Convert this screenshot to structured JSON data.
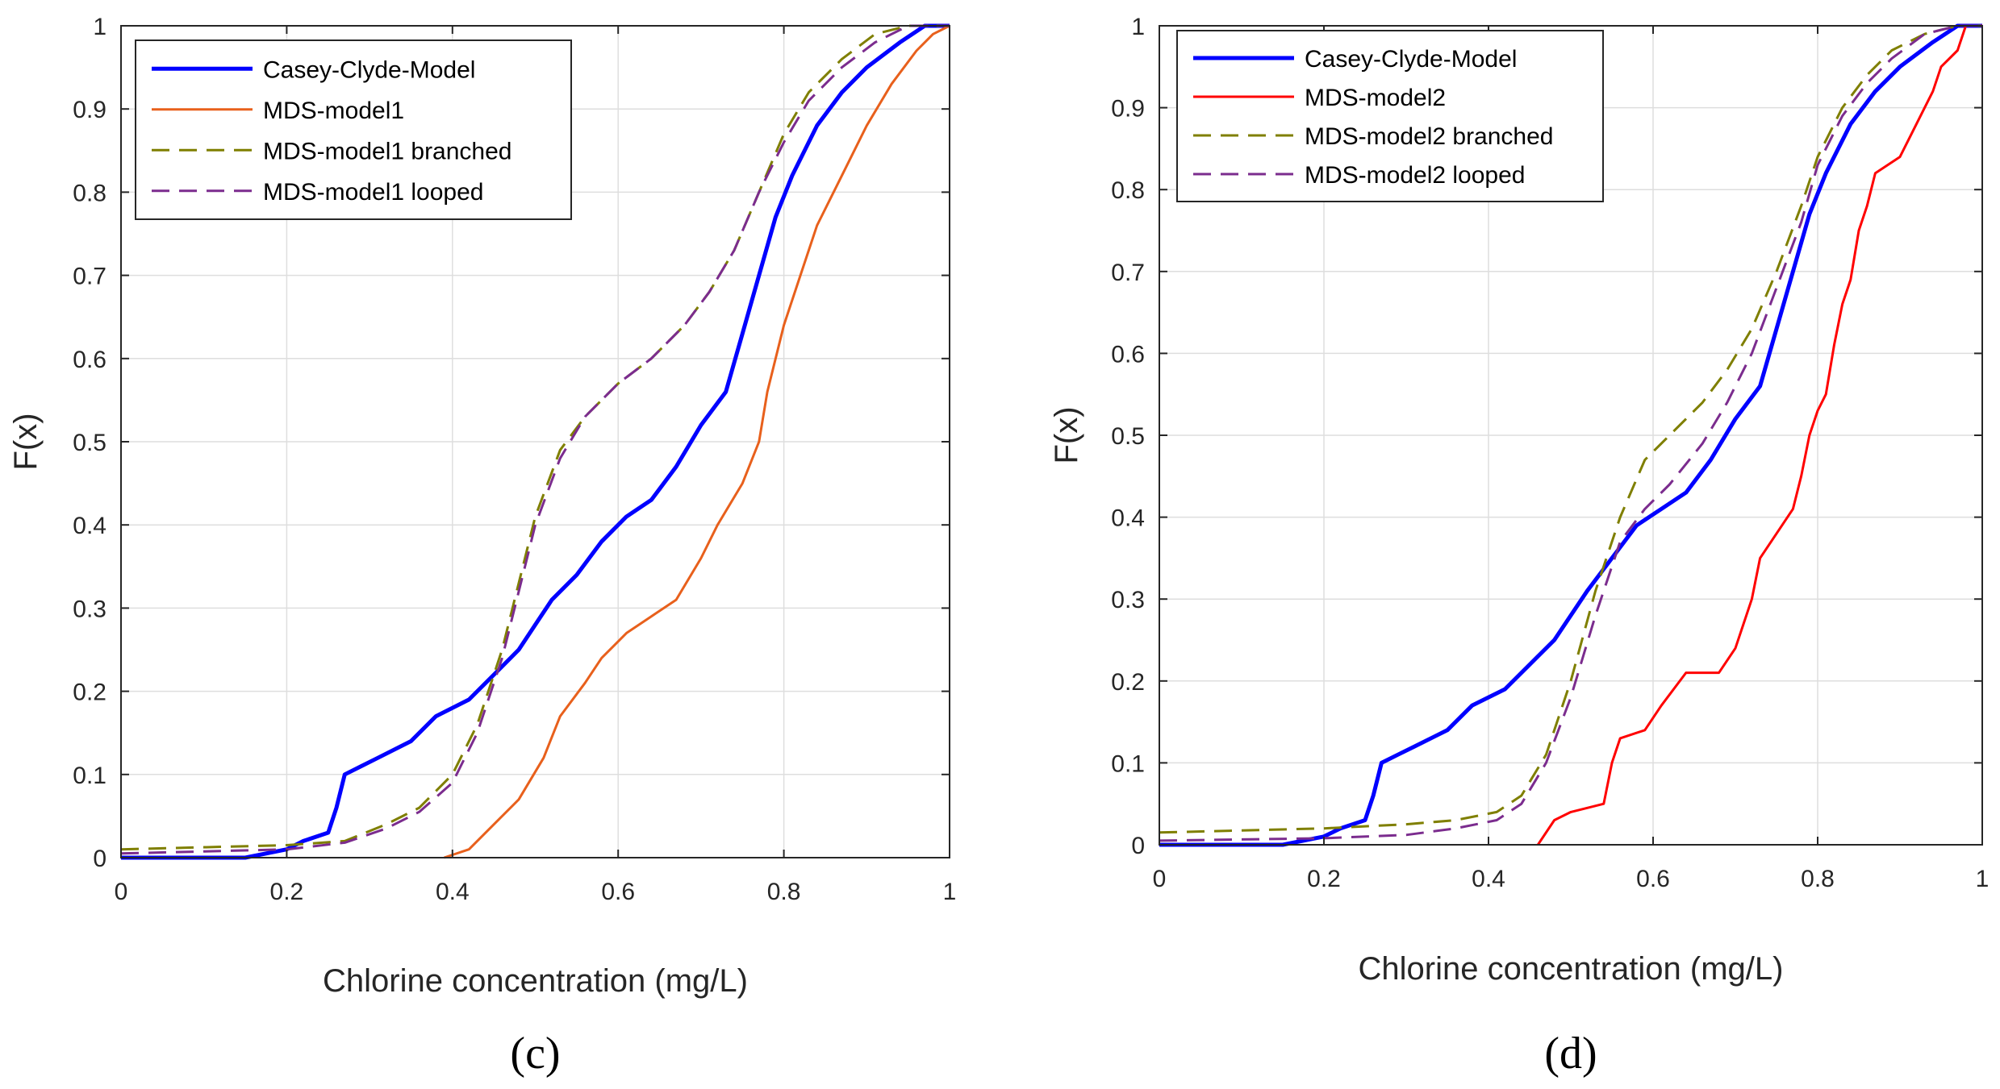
{
  "chart_data": [
    {
      "type": "line",
      "panel_label": "(c)",
      "xlabel": "Chlorine concentration (mg/L)",
      "ylabel": "F(x)",
      "xlim": [
        0,
        1
      ],
      "ylim": [
        0,
        1
      ],
      "xticks": [
        "0",
        "0.2",
        "0.4",
        "0.6",
        "0.8",
        "1"
      ],
      "yticks": [
        "0",
        "0.1",
        "0.2",
        "0.3",
        "0.4",
        "0.5",
        "0.6",
        "0.7",
        "0.8",
        "0.9",
        "1"
      ],
      "grid": true,
      "legend_position": "top-left",
      "series": [
        {
          "name": "Casey-Clyde-Model",
          "color": "#0000ff",
          "style": "solid-thick",
          "points": [
            [
              0,
              0
            ],
            [
              0.15,
              0
            ],
            [
              0.2,
              0.01
            ],
            [
              0.22,
              0.02
            ],
            [
              0.25,
              0.03
            ],
            [
              0.26,
              0.06
            ],
            [
              0.27,
              0.1
            ],
            [
              0.29,
              0.11
            ],
            [
              0.31,
              0.12
            ],
            [
              0.35,
              0.14
            ],
            [
              0.38,
              0.17
            ],
            [
              0.42,
              0.19
            ],
            [
              0.45,
              0.22
            ],
            [
              0.48,
              0.25
            ],
            [
              0.5,
              0.28
            ],
            [
              0.52,
              0.31
            ],
            [
              0.55,
              0.34
            ],
            [
              0.58,
              0.38
            ],
            [
              0.61,
              0.41
            ],
            [
              0.64,
              0.43
            ],
            [
              0.67,
              0.47
            ],
            [
              0.7,
              0.52
            ],
            [
              0.73,
              0.56
            ],
            [
              0.75,
              0.63
            ],
            [
              0.77,
              0.7
            ],
            [
              0.79,
              0.77
            ],
            [
              0.81,
              0.82
            ],
            [
              0.84,
              0.88
            ],
            [
              0.87,
              0.92
            ],
            [
              0.9,
              0.95
            ],
            [
              0.94,
              0.98
            ],
            [
              0.97,
              1.0
            ],
            [
              1.0,
              1.0
            ]
          ]
        },
        {
          "name": "MDS-model1",
          "color": "#e8601c",
          "style": "solid",
          "points": [
            [
              0.39,
              0
            ],
            [
              0.42,
              0.01
            ],
            [
              0.45,
              0.04
            ],
            [
              0.48,
              0.07
            ],
            [
              0.51,
              0.12
            ],
            [
              0.53,
              0.17
            ],
            [
              0.56,
              0.21
            ],
            [
              0.58,
              0.24
            ],
            [
              0.61,
              0.27
            ],
            [
              0.64,
              0.29
            ],
            [
              0.67,
              0.31
            ],
            [
              0.7,
              0.36
            ],
            [
              0.72,
              0.4
            ],
            [
              0.75,
              0.45
            ],
            [
              0.77,
              0.5
            ],
            [
              0.78,
              0.56
            ],
            [
              0.8,
              0.64
            ],
            [
              0.82,
              0.7
            ],
            [
              0.84,
              0.76
            ],
            [
              0.87,
              0.82
            ],
            [
              0.9,
              0.88
            ],
            [
              0.93,
              0.93
            ],
            [
              0.96,
              0.97
            ],
            [
              0.98,
              0.99
            ],
            [
              1.0,
              1.0
            ]
          ]
        },
        {
          "name": "MDS-model1 branched",
          "color": "#7f7f00",
          "style": "dashed",
          "points": [
            [
              0,
              0.01
            ],
            [
              0.2,
              0.015
            ],
            [
              0.27,
              0.02
            ],
            [
              0.32,
              0.04
            ],
            [
              0.36,
              0.06
            ],
            [
              0.4,
              0.1
            ],
            [
              0.43,
              0.16
            ],
            [
              0.46,
              0.25
            ],
            [
              0.48,
              0.33
            ],
            [
              0.5,
              0.41
            ],
            [
              0.53,
              0.49
            ],
            [
              0.56,
              0.53
            ],
            [
              0.6,
              0.57
            ],
            [
              0.64,
              0.6
            ],
            [
              0.68,
              0.64
            ],
            [
              0.71,
              0.68
            ],
            [
              0.74,
              0.73
            ],
            [
              0.77,
              0.8
            ],
            [
              0.8,
              0.87
            ],
            [
              0.83,
              0.92
            ],
            [
              0.87,
              0.96
            ],
            [
              0.91,
              0.99
            ],
            [
              0.95,
              1.0
            ],
            [
              1.0,
              1.0
            ]
          ]
        },
        {
          "name": "MDS-model1 looped",
          "color": "#7b2c8e",
          "style": "dashed",
          "points": [
            [
              0,
              0.005
            ],
            [
              0.2,
              0.01
            ],
            [
              0.27,
              0.018
            ],
            [
              0.32,
              0.035
            ],
            [
              0.36,
              0.055
            ],
            [
              0.4,
              0.09
            ],
            [
              0.43,
              0.15
            ],
            [
              0.46,
              0.24
            ],
            [
              0.48,
              0.32
            ],
            [
              0.5,
              0.4
            ],
            [
              0.53,
              0.48
            ],
            [
              0.56,
              0.53
            ],
            [
              0.6,
              0.57
            ],
            [
              0.64,
              0.6
            ],
            [
              0.68,
              0.64
            ],
            [
              0.71,
              0.68
            ],
            [
              0.74,
              0.73
            ],
            [
              0.77,
              0.8
            ],
            [
              0.8,
              0.86
            ],
            [
              0.83,
              0.91
            ],
            [
              0.87,
              0.95
            ],
            [
              0.91,
              0.98
            ],
            [
              0.95,
              1.0
            ],
            [
              1.0,
              1.0
            ]
          ]
        }
      ]
    },
    {
      "type": "line",
      "panel_label": "(d)",
      "xlabel": "Chlorine concentration (mg/L)",
      "ylabel": "F(x)",
      "xlim": [
        0,
        1
      ],
      "ylim": [
        0,
        1
      ],
      "xticks": [
        "0",
        "0.2",
        "0.4",
        "0.6",
        "0.8",
        "1"
      ],
      "yticks": [
        "0",
        "0.1",
        "0.2",
        "0.3",
        "0.4",
        "0.5",
        "0.6",
        "0.7",
        "0.8",
        "0.9",
        "1"
      ],
      "grid": true,
      "legend_position": "top-left",
      "series": [
        {
          "name": "Casey-Clyde-Model",
          "color": "#0000ff",
          "style": "solid-thick",
          "points": [
            [
              0,
              0
            ],
            [
              0.15,
              0
            ],
            [
              0.2,
              0.01
            ],
            [
              0.22,
              0.02
            ],
            [
              0.25,
              0.03
            ],
            [
              0.26,
              0.06
            ],
            [
              0.27,
              0.1
            ],
            [
              0.29,
              0.11
            ],
            [
              0.31,
              0.12
            ],
            [
              0.35,
              0.14
            ],
            [
              0.38,
              0.17
            ],
            [
              0.42,
              0.19
            ],
            [
              0.45,
              0.22
            ],
            [
              0.48,
              0.25
            ],
            [
              0.5,
              0.28
            ],
            [
              0.52,
              0.31
            ],
            [
              0.55,
              0.35
            ],
            [
              0.58,
              0.39
            ],
            [
              0.61,
              0.41
            ],
            [
              0.64,
              0.43
            ],
            [
              0.67,
              0.47
            ],
            [
              0.7,
              0.52
            ],
            [
              0.73,
              0.56
            ],
            [
              0.75,
              0.63
            ],
            [
              0.77,
              0.7
            ],
            [
              0.79,
              0.77
            ],
            [
              0.81,
              0.82
            ],
            [
              0.84,
              0.88
            ],
            [
              0.87,
              0.92
            ],
            [
              0.9,
              0.95
            ],
            [
              0.94,
              0.98
            ],
            [
              0.97,
              1.0
            ],
            [
              1.0,
              1.0
            ]
          ]
        },
        {
          "name": "MDS-model2",
          "color": "#ff0000",
          "style": "solid",
          "points": [
            [
              0.46,
              0
            ],
            [
              0.48,
              0.03
            ],
            [
              0.5,
              0.04
            ],
            [
              0.54,
              0.05
            ],
            [
              0.55,
              0.1
            ],
            [
              0.56,
              0.13
            ],
            [
              0.59,
              0.14
            ],
            [
              0.61,
              0.17
            ],
            [
              0.64,
              0.21
            ],
            [
              0.68,
              0.21
            ],
            [
              0.7,
              0.24
            ],
            [
              0.72,
              0.3
            ],
            [
              0.73,
              0.35
            ],
            [
              0.75,
              0.38
            ],
            [
              0.77,
              0.41
            ],
            [
              0.78,
              0.45
            ],
            [
              0.79,
              0.5
            ],
            [
              0.8,
              0.53
            ],
            [
              0.81,
              0.55
            ],
            [
              0.82,
              0.61
            ],
            [
              0.83,
              0.66
            ],
            [
              0.84,
              0.69
            ],
            [
              0.85,
              0.75
            ],
            [
              0.86,
              0.78
            ],
            [
              0.87,
              0.82
            ],
            [
              0.9,
              0.84
            ],
            [
              0.92,
              0.88
            ],
            [
              0.94,
              0.92
            ],
            [
              0.95,
              0.95
            ],
            [
              0.97,
              0.97
            ],
            [
              0.98,
              1.0
            ],
            [
              1.0,
              1.0
            ]
          ]
        },
        {
          "name": "MDS-model2 branched",
          "color": "#7f7f00",
          "style": "dashed",
          "points": [
            [
              0,
              0.015
            ],
            [
              0.2,
              0.02
            ],
            [
              0.3,
              0.025
            ],
            [
              0.36,
              0.03
            ],
            [
              0.41,
              0.04
            ],
            [
              0.44,
              0.06
            ],
            [
              0.47,
              0.11
            ],
            [
              0.5,
              0.2
            ],
            [
              0.53,
              0.31
            ],
            [
              0.56,
              0.4
            ],
            [
              0.59,
              0.47
            ],
            [
              0.62,
              0.5
            ],
            [
              0.66,
              0.54
            ],
            [
              0.69,
              0.58
            ],
            [
              0.72,
              0.63
            ],
            [
              0.75,
              0.7
            ],
            [
              0.78,
              0.78
            ],
            [
              0.8,
              0.84
            ],
            [
              0.83,
              0.9
            ],
            [
              0.86,
              0.94
            ],
            [
              0.89,
              0.97
            ],
            [
              0.93,
              0.99
            ],
            [
              0.97,
              1.0
            ],
            [
              1.0,
              1.0
            ]
          ]
        },
        {
          "name": "MDS-model2 looped",
          "color": "#7b2c8e",
          "style": "dashed",
          "points": [
            [
              0,
              0.005
            ],
            [
              0.2,
              0.008
            ],
            [
              0.3,
              0.012
            ],
            [
              0.36,
              0.02
            ],
            [
              0.41,
              0.03
            ],
            [
              0.44,
              0.05
            ],
            [
              0.47,
              0.1
            ],
            [
              0.5,
              0.18
            ],
            [
              0.53,
              0.28
            ],
            [
              0.56,
              0.37
            ],
            [
              0.59,
              0.41
            ],
            [
              0.62,
              0.44
            ],
            [
              0.66,
              0.49
            ],
            [
              0.69,
              0.54
            ],
            [
              0.72,
              0.6
            ],
            [
              0.75,
              0.68
            ],
            [
              0.78,
              0.76
            ],
            [
              0.8,
              0.83
            ],
            [
              0.83,
              0.89
            ],
            [
              0.86,
              0.93
            ],
            [
              0.89,
              0.96
            ],
            [
              0.93,
              0.99
            ],
            [
              0.97,
              1.0
            ],
            [
              1.0,
              1.0
            ]
          ]
        }
      ]
    }
  ]
}
